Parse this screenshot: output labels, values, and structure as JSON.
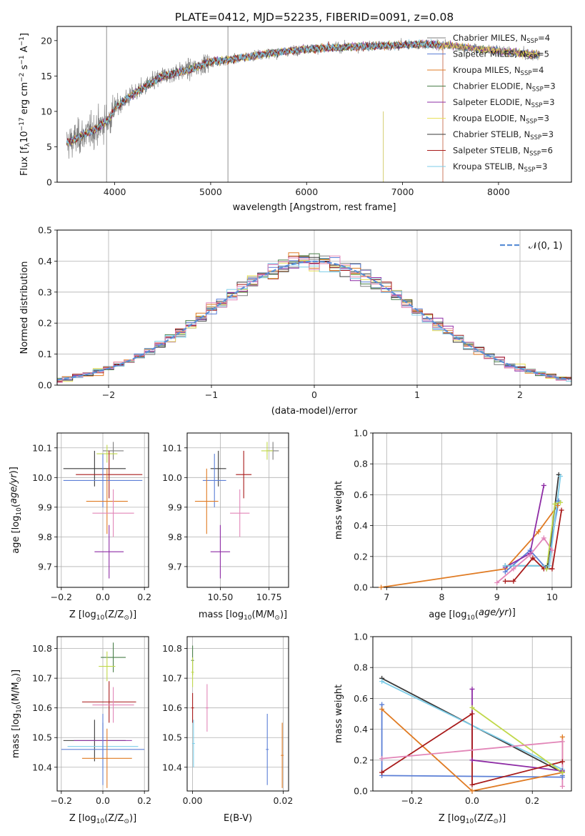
{
  "colors": {
    "Chabrier MILES": "#7f7f7f",
    "Salpeter MILES": "#5b7fd6",
    "Kroupa MILES": "#e07b23",
    "Chabrier ELODIE": "#4a7f4a",
    "Salpeter ELODIE": "#8e2ca5",
    "Kroupa ELODIE": "#e8e05a",
    "Chabrier STELIB": "#3a3a3a",
    "Salpeter STELIB": "#a81a1a",
    "Kroupa STELIB": "#7dcde8",
    "pink": "#e286b8",
    "lime": "#c0d84a",
    "normal": "#5b8fd6"
  },
  "chart_data": [
    {
      "id": "spectrum",
      "type": "line",
      "title": "PLATE=0412, MJD=52235, FIBERID=0091, z=0.08",
      "xlabel": "wavelength [Angstrom, rest frame]",
      "ylabel_parts": [
        "Flux [f",
        "λ",
        "10",
        "−17",
        " erg cm",
        "−2",
        " s",
        "−1",
        " A",
        "−1",
        "]"
      ],
      "xlim": [
        3400,
        8760
      ],
      "ylim": [
        0,
        22
      ],
      "xticks": [
        4000,
        5000,
        6000,
        7000,
        8000
      ],
      "yticks": [
        0,
        5,
        10,
        15,
        20
      ],
      "legend_position": "right",
      "series": [
        {
          "name": "Chabrier MILES",
          "nssp": 4
        },
        {
          "name": "Salpeter MILES",
          "nssp": 5
        },
        {
          "name": "Kroupa MILES",
          "nssp": 4
        },
        {
          "name": "Chabrier ELODIE",
          "nssp": 3
        },
        {
          "name": "Salpeter ELODIE",
          "nssp": 3
        },
        {
          "name": "Kroupa ELODIE",
          "nssp": 3
        },
        {
          "name": "Chabrier STELIB",
          "nssp": 3
        },
        {
          "name": "Salpeter STELIB",
          "nssp": 6
        },
        {
          "name": "Kroupa STELIB",
          "nssp": 3
        }
      ],
      "continuum": {
        "x": [
          3500,
          3650,
          3800,
          3950,
          4000,
          4200,
          4500,
          4800,
          5000,
          5200,
          5500,
          5800,
          6000,
          6300,
          6600,
          6900,
          7200,
          7500,
          7800,
          8100,
          8400
        ],
        "y": [
          5.5,
          6.5,
          7.5,
          9.0,
          10.5,
          12.5,
          15.0,
          16.0,
          17.0,
          17.3,
          18.0,
          18.5,
          18.8,
          19.0,
          19.2,
          19.3,
          19.5,
          19.3,
          18.8,
          18.4,
          18.0
        ]
      }
    },
    {
      "id": "residuals",
      "type": "line",
      "xlabel": "(data-model)/error",
      "ylabel": "Normed distribution",
      "xlim": [
        -2.5,
        2.5
      ],
      "ylim": [
        0,
        0.5
      ],
      "xticks": [
        -2,
        -1,
        0,
        1,
        2
      ],
      "yticks": [
        0.0,
        0.1,
        0.2,
        0.3,
        0.4,
        0.5
      ],
      "legend_label": "𝒩(0, 1)",
      "legend_position": "top-right",
      "grid": true
    },
    {
      "id": "age_vs_Z",
      "type": "scatter",
      "xlabel": "Z [log10(Z/Z⊙)]",
      "ylabel": "age  [log10(age/yr)]",
      "xlim": [
        -0.22,
        0.22
      ],
      "ylim": [
        9.63,
        10.15
      ],
      "xticks": [
        -0.2,
        0.0,
        0.2
      ],
      "yticks": [
        9.7,
        9.8,
        9.9,
        10.0,
        10.1
      ],
      "grid": true,
      "points": [
        {
          "color": "Chabrier MILES",
          "x": 0.05,
          "y": 10.09,
          "xe": 0.05,
          "ye": 0.03
        },
        {
          "color": "lime",
          "x": 0.02,
          "y": 10.08,
          "xe": 0.05,
          "ye": 0.03
        },
        {
          "color": "Chabrier STELIB",
          "x": -0.04,
          "y": 10.03,
          "xe": 0.15,
          "ye": 0.06
        },
        {
          "color": "Salpeter STELIB",
          "x": 0.03,
          "y": 10.01,
          "xe": 0.16,
          "ye": 0.08
        },
        {
          "color": "Salpeter MILES",
          "x": 0.0,
          "y": 9.99,
          "xe": 0.19,
          "ye": 0.09
        },
        {
          "color": "Kroupa MILES",
          "x": 0.02,
          "y": 9.92,
          "xe": 0.1,
          "ye": 0.11
        },
        {
          "color": "pink",
          "x": 0.05,
          "y": 9.88,
          "xe": 0.1,
          "ye": 0.08
        },
        {
          "color": "Salpeter ELODIE",
          "x": 0.03,
          "y": 9.75,
          "xe": 0.07,
          "ye": 0.09
        }
      ]
    },
    {
      "id": "age_vs_mass",
      "type": "scatter",
      "xlabel": "mass [log10(M/M⊙)]",
      "xlim": [
        10.33,
        10.85
      ],
      "ylim": [
        9.63,
        10.15
      ],
      "xticks": [
        10.5,
        10.75
      ],
      "yticks": [
        9.7,
        9.8,
        9.9,
        10.0,
        10.1
      ],
      "grid": true,
      "points": [
        {
          "color": "Chabrier MILES",
          "x": 10.77,
          "y": 10.09,
          "xe": 0.03,
          "ye": 0.03
        },
        {
          "color": "lime",
          "x": 10.74,
          "y": 10.09,
          "xe": 0.03,
          "ye": 0.03
        },
        {
          "color": "Chabrier STELIB",
          "x": 10.49,
          "y": 10.03,
          "xe": 0.04,
          "ye": 0.06
        },
        {
          "color": "Salpeter STELIB",
          "x": 10.62,
          "y": 10.01,
          "xe": 0.04,
          "ye": 0.08
        },
        {
          "color": "Salpeter MILES",
          "x": 10.47,
          "y": 9.99,
          "xe": 0.06,
          "ye": 0.09
        },
        {
          "color": "Kroupa MILES",
          "x": 10.43,
          "y": 9.92,
          "xe": 0.06,
          "ye": 0.11
        },
        {
          "color": "pink",
          "x": 10.6,
          "y": 9.88,
          "xe": 0.05,
          "ye": 0.08
        },
        {
          "color": "Salpeter ELODIE",
          "x": 10.5,
          "y": 9.75,
          "xe": 0.05,
          "ye": 0.09
        }
      ]
    },
    {
      "id": "weight_vs_age",
      "type": "line",
      "xlabel": "age  [log10(age/yr)]",
      "ylabel": "mass weight",
      "xlim": [
        6.75,
        10.35
      ],
      "ylim": [
        0,
        1.0
      ],
      "xticks": [
        7,
        8,
        9,
        10
      ],
      "yticks": [
        0.0,
        0.2,
        0.4,
        0.6,
        0.8,
        1.0
      ],
      "grid": true,
      "series": [
        {
          "color": "Kroupa MILES",
          "x": [
            6.9,
            9.15,
            9.75,
            10.1
          ],
          "y": [
            0.0,
            0.12,
            0.36,
            0.53
          ]
        },
        {
          "color": "Salpeter MILES",
          "x": [
            9.15,
            9.6,
            9.9,
            10.12
          ],
          "y": [
            0.1,
            0.24,
            0.12,
            0.56
          ]
        },
        {
          "color": "Salpeter ELODIE",
          "x": [
            9.15,
            9.6,
            9.85
          ],
          "y": [
            0.13,
            0.22,
            0.66
          ]
        },
        {
          "color": "Chabrier STELIB",
          "x": [
            9.15,
            9.92,
            10.12
          ],
          "y": [
            0.14,
            0.14,
            0.73
          ]
        },
        {
          "color": "Kroupa STELIB",
          "x": [
            9.15,
            9.95,
            10.15
          ],
          "y": [
            0.14,
            0.14,
            0.72
          ]
        },
        {
          "color": "Salpeter STELIB",
          "x": [
            9.15,
            9.3,
            9.65,
            9.85,
            10.0,
            10.17
          ],
          "y": [
            0.04,
            0.04,
            0.19,
            0.12,
            0.12,
            0.5
          ]
        },
        {
          "color": "pink",
          "x": [
            9.0,
            9.3,
            9.6,
            9.85,
            10.0
          ],
          "y": [
            0.03,
            0.12,
            0.21,
            0.32,
            0.24
          ]
        },
        {
          "color": "lime",
          "x": [
            9.9,
            10.05,
            10.15
          ],
          "y": [
            0.12,
            0.54,
            0.55
          ]
        }
      ]
    },
    {
      "id": "mass_vs_Z",
      "type": "scatter",
      "xlabel": "Z [log10(Z/Z⊙)]",
      "ylabel": "mass [log10(M/M⊙)]",
      "xlim": [
        -0.22,
        0.22
      ],
      "ylim": [
        10.32,
        10.84
      ],
      "xticks": [
        -0.2,
        0.0,
        0.2
      ],
      "yticks": [
        10.4,
        10.5,
        10.6,
        10.7,
        10.8
      ],
      "grid": true,
      "points": [
        {
          "color": "Chabrier ELODIE",
          "x": 0.05,
          "y": 10.77,
          "xe": 0.06,
          "ye": 0.05
        },
        {
          "color": "lime",
          "x": 0.02,
          "y": 10.74,
          "xe": 0.04,
          "ye": 0.05
        },
        {
          "color": "Salpeter STELIB",
          "x": 0.03,
          "y": 10.62,
          "xe": 0.13,
          "ye": 0.07
        },
        {
          "color": "pink",
          "x": 0.05,
          "y": 10.61,
          "xe": 0.1,
          "ye": 0.06
        },
        {
          "color": "Chabrier STELIB",
          "x": -0.04,
          "y": 10.49,
          "xe": 0.15,
          "ye": 0.07
        },
        {
          "color": "Salpeter ELODIE",
          "x": 0.0,
          "y": 10.49,
          "xe": 0.14,
          "ye": 0.06
        },
        {
          "color": "Kroupa STELIB",
          "x": 0.0,
          "y": 10.47,
          "xe": 0.17,
          "ye": 0.08
        },
        {
          "color": "Salpeter MILES",
          "x": 0.0,
          "y": 10.46,
          "xe": 0.2,
          "ye": 0.12
        },
        {
          "color": "Kroupa MILES",
          "x": 0.02,
          "y": 10.43,
          "xe": 0.12,
          "ye": 0.1
        }
      ]
    },
    {
      "id": "mass_vs_ebv",
      "type": "scatter",
      "xlabel": "E(B-V)",
      "xlim": [
        -0.0012,
        0.0212
      ],
      "ylim": [
        10.32,
        10.84
      ],
      "xticks": [
        0.0,
        0.02
      ],
      "yticks": [
        10.4,
        10.5,
        10.6,
        10.7,
        10.8
      ],
      "grid": true,
      "points": [
        {
          "color": "Chabrier ELODIE",
          "x": 0.0,
          "y": 10.76,
          "ye": 0.05
        },
        {
          "color": "lime",
          "x": 0.0,
          "y": 10.72,
          "ye": 0.05
        },
        {
          "color": "Salpeter STELIB",
          "x": 0.0,
          "y": 10.6,
          "ye": 0.05
        },
        {
          "color": "pink",
          "x": 0.0032,
          "y": 10.6,
          "ye": 0.08
        },
        {
          "color": "Kroupa STELIB",
          "x": 0.0002,
          "y": 10.48,
          "ye": 0.08
        },
        {
          "color": "Salpeter MILES",
          "x": 0.0165,
          "y": 10.46,
          "ye": 0.12
        },
        {
          "color": "Kroupa MILES",
          "x": 0.0198,
          "y": 10.44,
          "ye": 0.11
        }
      ]
    },
    {
      "id": "weight_vs_Z",
      "type": "line",
      "xlabel": "Z [log10(Z/Z⊙)]",
      "ylabel": "mass weight",
      "xlim": [
        -0.33,
        0.33
      ],
      "ylim": [
        0,
        1.0
      ],
      "xticks": [
        -0.2,
        0.0,
        0.2
      ],
      "yticks": [
        0.0,
        0.2,
        0.4,
        0.6,
        0.8,
        1.0
      ],
      "grid": true,
      "series": [
        {
          "color": "Chabrier STELIB",
          "x": [
            -0.3,
            0.3
          ],
          "y": [
            0.73,
            0.12
          ]
        },
        {
          "color": "Kroupa STELIB",
          "x": [
            -0.3,
            0.3
          ],
          "y": [
            0.71,
            0.14
          ]
        },
        {
          "color": "Salpeter MILES",
          "x": [
            -0.3,
            -0.3,
            0.3,
            0.3,
            0.3
          ],
          "y": [
            0.56,
            0.1,
            0.09,
            0.13,
            0.1
          ]
        },
        {
          "color": "Kroupa MILES",
          "x": [
            -0.3,
            0.0,
            0.3,
            0.3
          ],
          "y": [
            0.53,
            0.0,
            0.12,
            0.35
          ]
        },
        {
          "color": "Salpeter ELODIE",
          "x": [
            0.0,
            0.0,
            0.3
          ],
          "y": [
            0.66,
            0.2,
            0.13
          ]
        },
        {
          "color": "Salpeter STELIB",
          "x": [
            -0.3,
            0.0,
            0.0,
            0.3
          ],
          "y": [
            0.12,
            0.5,
            0.04,
            0.19
          ]
        },
        {
          "color": "lime",
          "x": [
            0.0,
            0.3
          ],
          "y": [
            0.54,
            0.12
          ]
        },
        {
          "color": "pink",
          "x": [
            -0.3,
            0.3,
            0.3
          ],
          "y": [
            0.21,
            0.32,
            0.03
          ]
        }
      ]
    }
  ]
}
